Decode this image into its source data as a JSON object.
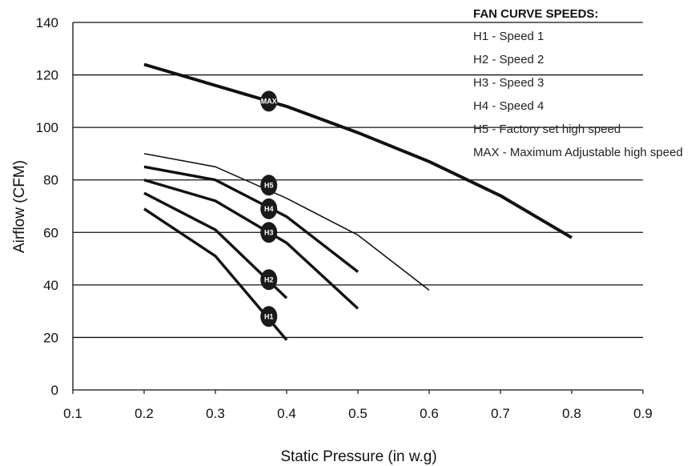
{
  "chart_data": {
    "type": "line",
    "xlabel": "Static Pressure (in w.g)",
    "ylabel": "Airflow (CFM)",
    "xlim": [
      0.1,
      0.9
    ],
    "ylim": [
      0,
      140
    ],
    "x_ticks": [
      "0.1",
      "0.2",
      "0.3",
      "0.4",
      "0.5",
      "0.6",
      "0.7",
      "0.8",
      "0.9"
    ],
    "y_ticks": [
      "0",
      "20",
      "40",
      "60",
      "80",
      "100",
      "120",
      "140"
    ],
    "grid": "horizontal",
    "legend": {
      "title": "FAN CURVE SPEEDS:",
      "placement": "top-right",
      "entries": [
        "H1 - Speed 1",
        "H2 - Speed 2",
        "H3 - Speed 3",
        "H4 - Speed 4",
        "H5 - Factory set high speed",
        "MAX - Maximum Adjustable high speed"
      ]
    },
    "series": [
      {
        "name": "MAX",
        "label": "MAX",
        "marker_at": [
          0.375,
          110
        ],
        "points": [
          [
            0.2,
            124
          ],
          [
            0.4,
            108
          ],
          [
            0.5,
            98
          ],
          [
            0.6,
            87
          ],
          [
            0.7,
            74
          ],
          [
            0.8,
            58
          ]
        ]
      },
      {
        "name": "H5",
        "label": "H5",
        "marker_at": [
          0.375,
          78
        ],
        "points": [
          [
            0.2,
            90
          ],
          [
            0.3,
            85
          ],
          [
            0.4,
            73
          ],
          [
            0.5,
            59
          ],
          [
            0.6,
            38
          ]
        ]
      },
      {
        "name": "H4",
        "label": "H4",
        "marker_at": [
          0.375,
          69
        ],
        "points": [
          [
            0.2,
            85
          ],
          [
            0.3,
            80
          ],
          [
            0.4,
            66
          ],
          [
            0.5,
            45
          ]
        ]
      },
      {
        "name": "H3",
        "label": "H3",
        "marker_at": [
          0.375,
          60
        ],
        "points": [
          [
            0.2,
            80
          ],
          [
            0.3,
            72
          ],
          [
            0.4,
            56
          ],
          [
            0.5,
            31
          ]
        ]
      },
      {
        "name": "H2",
        "label": "H2",
        "marker_at": [
          0.375,
          42
        ],
        "points": [
          [
            0.2,
            75
          ],
          [
            0.3,
            61
          ],
          [
            0.4,
            35
          ]
        ]
      },
      {
        "name": "H1",
        "label": "H1",
        "marker_at": [
          0.375,
          28
        ],
        "points": [
          [
            0.2,
            69
          ],
          [
            0.3,
            51
          ],
          [
            0.4,
            19
          ]
        ]
      }
    ]
  }
}
